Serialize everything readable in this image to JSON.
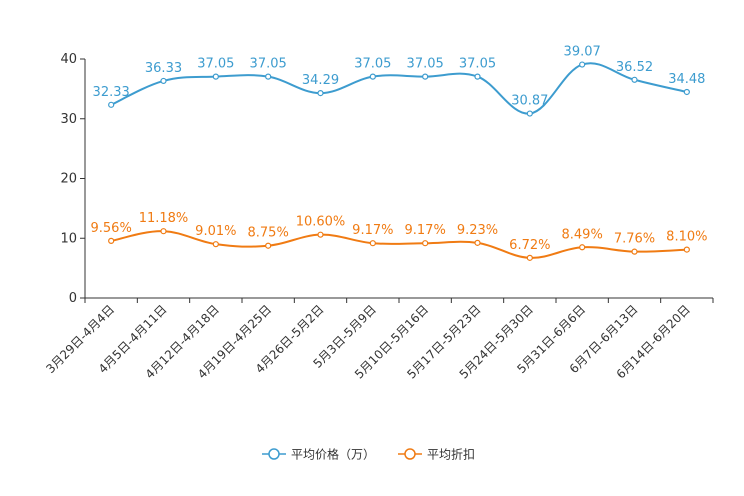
{
  "chart_data": {
    "type": "line",
    "categories": [
      "3月29日-4月4日",
      "4月5日-4月11日",
      "4月12日-4月18日",
      "4月19日-4月25日",
      "4月26日-5月2日",
      "5月3日-5月9日",
      "5月10日-5月16日",
      "5月17日-5月23日",
      "5月24日-5月30日",
      "5月31日-6月6日",
      "6月7日-6月13日",
      "6月14日-6月20日"
    ],
    "series": [
      {
        "name": "平均价格（万）",
        "color": "#3d9ccf",
        "values": [
          32.33,
          36.33,
          37.05,
          37.05,
          34.29,
          37.05,
          37.05,
          37.05,
          30.87,
          39.07,
          36.52,
          34.48
        ],
        "labels": [
          "32.33",
          "36.33",
          "37.05",
          "37.05",
          "34.29",
          "37.05",
          "37.05",
          "37.05",
          "30.87",
          "39.07",
          "36.52",
          "34.48"
        ]
      },
      {
        "name": "平均折扣",
        "color": "#f07b13",
        "values": [
          9.56,
          11.18,
          9.01,
          8.75,
          10.6,
          9.17,
          9.17,
          9.23,
          6.72,
          8.49,
          7.76,
          8.1
        ],
        "labels": [
          "9.56%",
          "11.18%",
          "9.01%",
          "8.75%",
          "10.60%",
          "9.17%",
          "9.17%",
          "9.23%",
          "6.72%",
          "8.49%",
          "7.76%",
          "8.10%"
        ]
      }
    ],
    "ylim": [
      0,
      40
    ],
    "yticks": [
      "0",
      "10",
      "20",
      "30",
      "40"
    ],
    "grid": false,
    "legend_position": "bottom-center"
  }
}
